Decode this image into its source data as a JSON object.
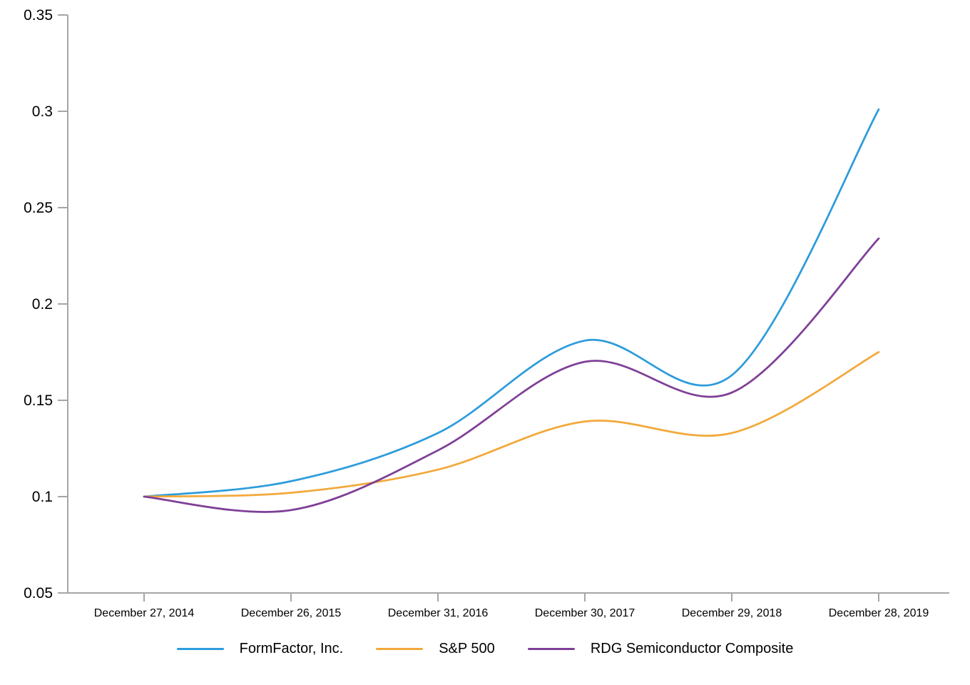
{
  "chart_data": {
    "type": "line",
    "title": "",
    "xlabel": "",
    "ylabel": "",
    "categories": [
      "December 27, 2014",
      "December 26, 2015",
      "December 31, 2016",
      "December 30, 2017",
      "December 29, 2018",
      "December 28, 2019"
    ],
    "y_ticks": [
      {
        "label": "0.05",
        "value": 0.05
      },
      {
        "label": "0.1",
        "value": 0.1
      },
      {
        "label": "0.15",
        "value": 0.15
      },
      {
        "label": "0.2",
        "value": 0.2
      },
      {
        "label": "0.25",
        "value": 0.25
      },
      {
        "label": "0.3",
        "value": 0.3
      },
      {
        "label": "0.35",
        "value": 0.35
      }
    ],
    "ylim": [
      0.05,
      0.35
    ],
    "grid": "off",
    "curve": "smooth",
    "legend_position": "bottom-center",
    "axis_color": "#A6A6A6",
    "label_color": "#000000",
    "series": [
      {
        "name": "FormFactor, Inc.",
        "color": "#2D9CDB",
        "values": [
          0.1,
          0.108,
          0.133,
          0.181,
          0.163,
          0.301
        ]
      },
      {
        "name": "S&P 500",
        "color": "#F2A93B",
        "values": [
          0.1,
          0.102,
          0.114,
          0.139,
          0.133,
          0.175
        ]
      },
      {
        "name": "RDG Semiconductor Composite",
        "color": "#7F3F97",
        "values": [
          0.1,
          0.093,
          0.124,
          0.17,
          0.154,
          0.234
        ]
      }
    ]
  }
}
